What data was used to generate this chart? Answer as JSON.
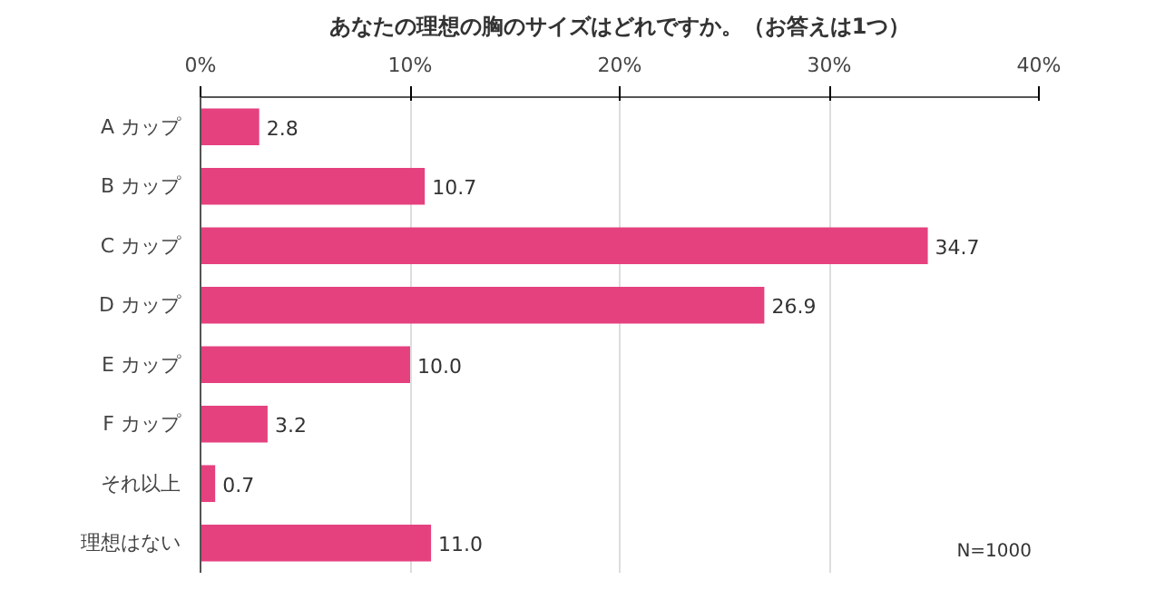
{
  "chart_data": {
    "type": "bar",
    "orientation": "horizontal",
    "title": "あなたの理想の胸のサイズはどれですか。（お答えは1つ）",
    "categories": [
      "A カップ",
      "B カップ",
      "C カップ",
      "D カップ",
      "E カップ",
      "F カップ",
      "それ以上",
      "理想はない"
    ],
    "values": [
      2.8,
      10.7,
      34.7,
      26.9,
      10.0,
      3.2,
      0.7,
      11.0
    ],
    "value_labels": [
      "2.8",
      "10.7",
      "34.7",
      "26.9",
      "10.0",
      "3.2",
      "0.7",
      "11.0"
    ],
    "color": "#e5417f",
    "xlim": [
      0,
      40
    ],
    "xticks": [
      {
        "value": 0,
        "label": "0%"
      },
      {
        "value": 10,
        "label": "10%"
      },
      {
        "value": 20,
        "label": "20%"
      },
      {
        "value": 30,
        "label": "30%"
      },
      {
        "value": 40,
        "label": "40%"
      }
    ],
    "grid": "x",
    "annotations": [
      "N=1000"
    ]
  }
}
